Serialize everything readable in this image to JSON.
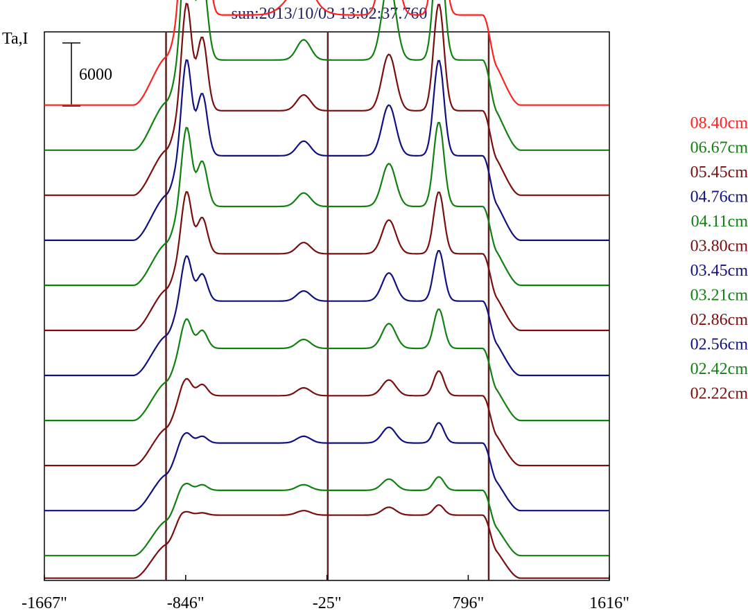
{
  "chart_data": {
    "type": "line",
    "title": "sun:2013/10/03 13:02:37.760",
    "ylabel": "Ta,I",
    "scale_bar_label": "6000",
    "scale_bar_value": 6000,
    "x_ticks": [
      -1667,
      -846,
      -25,
      796,
      1616
    ],
    "x_tick_labels": [
      "-1667\"",
      "-846\"",
      "-25\"",
      "796\"",
      "1616\""
    ],
    "xlim": [
      -1667,
      1616
    ],
    "ylim": [
      -1200,
      47500
    ],
    "vertical_lines_x": [
      -960,
      -20,
      915
    ],
    "colors": {
      "red": "#ff2020",
      "green": "#108010",
      "maroon": "#7a0e0e",
      "navy": "#101080",
      "grid": "#5a2020"
    },
    "series_base_values": [
      41000,
      37000,
      33000,
      29000,
      25000,
      21000,
      17000,
      13000,
      9000,
      5000,
      1000,
      -1000
    ],
    "series_amplitude": [
      8000,
      8000,
      7500,
      7500,
      7000,
      6800,
      6600,
      6400,
      6200,
      6000,
      5800,
      5600
    ],
    "series": [
      {
        "name": "08.40cm",
        "color": "#ff2020",
        "pk": [
          14500,
          12500,
          10000,
          12000,
          2200,
          1500,
          0
        ]
      },
      {
        "name": "06.67cm",
        "color": "#108010",
        "pk": [
          11000,
          7500,
          7000,
          11000,
          0,
          1800,
          0
        ]
      },
      {
        "name": "05.45cm",
        "color": "#7a0e0e",
        "pk": [
          9500,
          6500,
          5000,
          9500,
          0,
          1400,
          0
        ]
      },
      {
        "name": "04.76cm",
        "color": "#101080",
        "pk": [
          8500,
          5500,
          4500,
          8500,
          0,
          1300,
          0
        ]
      },
      {
        "name": "04.11cm",
        "color": "#108010",
        "pk": [
          7000,
          4000,
          3800,
          7500,
          0,
          1200,
          0
        ]
      },
      {
        "name": "03.80cm",
        "color": "#7a0e0e",
        "pk": [
          5500,
          3200,
          3000,
          5500,
          0,
          1000,
          0
        ]
      },
      {
        "name": "03.45cm",
        "color": "#101080",
        "pk": [
          4000,
          2400,
          2500,
          4500,
          0,
          900,
          0
        ]
      },
      {
        "name": "03.21cm",
        "color": "#108010",
        "pk": [
          2600,
          1600,
          2200,
          3500,
          0,
          800,
          0
        ]
      },
      {
        "name": "02.86cm",
        "color": "#7a0e0e",
        "pk": [
          1500,
          1000,
          1400,
          2200,
          0,
          700,
          0
        ]
      },
      {
        "name": "02.56cm",
        "color": "#101080",
        "pk": [
          900,
          600,
          1400,
          1800,
          0,
          600,
          0
        ]
      },
      {
        "name": "02.42cm",
        "color": "#108010",
        "pk": [
          600,
          500,
          1000,
          1200,
          0,
          500,
          0
        ]
      },
      {
        "name": "02.22cm",
        "color": "#7a0e0e",
        "pk": [
          300,
          200,
          700,
          900,
          0,
          400,
          0
        ]
      }
    ]
  }
}
